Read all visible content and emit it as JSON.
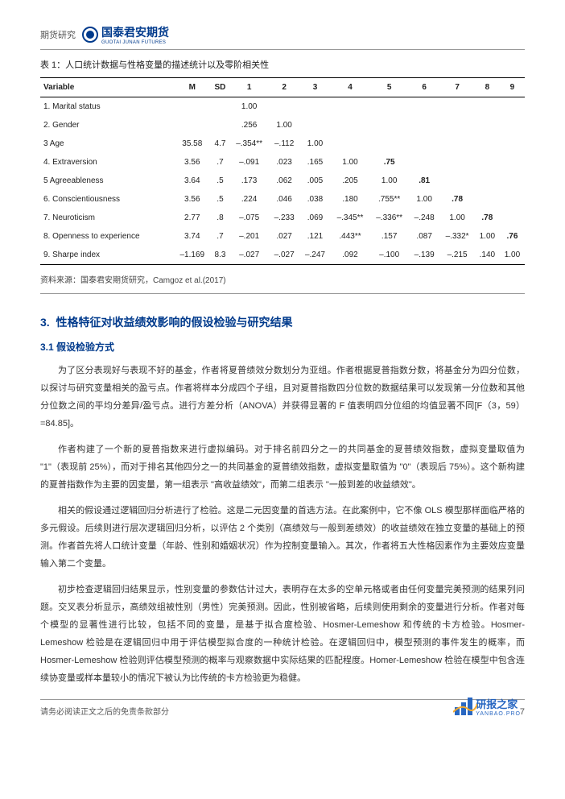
{
  "header": {
    "category": "期货研究",
    "logo_main": "国泰君安期货",
    "logo_sub": "GUOTAI JUNAN FUTURES"
  },
  "table": {
    "caption": "表 1：人口统计数据与性格变量的描述统计以及零阶相关性",
    "columns": [
      "Variable",
      "M",
      "SD",
      "1",
      "2",
      "3",
      "4",
      "5",
      "6",
      "7",
      "8",
      "9"
    ],
    "rows": [
      [
        "1. Marital status",
        "",
        "",
        "1.00",
        "",
        "",
        "",
        "",
        "",
        "",
        "",
        ""
      ],
      [
        "2. Gender",
        "",
        "",
        ".256",
        "1.00",
        "",
        "",
        "",
        "",
        "",
        "",
        ""
      ],
      [
        "3 Age",
        "35.58",
        "4.7",
        "–.354**",
        "–.112",
        "1.00",
        "",
        "",
        "",
        "",
        "",
        ""
      ],
      [
        "4. Extraversion",
        "3.56",
        ".7",
        "–.091",
        ".023",
        ".165",
        "1.00",
        ".75",
        "",
        "",
        "",
        ""
      ],
      [
        "5 Agreeableness",
        "3.64",
        ".5",
        ".173",
        ".062",
        ".005",
        ".205",
        "1.00",
        ".81",
        "",
        "",
        ""
      ],
      [
        "6. Conscientiousness",
        "3.56",
        ".5",
        ".224",
        ".046",
        ".038",
        ".180",
        ".755**",
        "1.00",
        ".78",
        "",
        ""
      ],
      [
        "7. Neuroticism",
        "2.77",
        ".8",
        "–.075",
        "–.233",
        ".069",
        "–.345**",
        "–.336**",
        "–.248",
        "1.00",
        ".78",
        ""
      ],
      [
        "8. Openness to experience",
        "3.74",
        ".7",
        "–.201",
        ".027",
        ".121",
        ".443**",
        ".157",
        ".087",
        "–.332*",
        "1.00",
        ".76"
      ],
      [
        "9. Sharpe index",
        "–1.169",
        "8.3",
        "–.027",
        "–.027",
        "–.247",
        ".092",
        "–.100",
        "–.139",
        "–.215",
        ".140",
        "1.00"
      ]
    ],
    "bold_cells": [
      [
        3,
        7
      ],
      [
        4,
        8
      ],
      [
        5,
        9
      ],
      [
        6,
        10
      ],
      [
        7,
        11
      ]
    ],
    "source": "资料来源：国泰君安期货研究，Camgoz et al.(2017)"
  },
  "section": {
    "num": "3.",
    "title": "性格特征对收益绩效影响的假设检验与研究结果",
    "sub_num": "3.1",
    "sub_title": "假设检验方式",
    "paragraphs": [
      "为了区分表现好与表现不好的基金，作者将夏普绩效分数划分为亚组。作者根据夏普指数分数，将基金分为四分位数，以探讨与研究变量相关的盈亏点。作者将样本分成四个子组，且对夏普指数四分位数的数据结果可以发现第一分位数和其他分位数之间的平均分差异/盈亏点。进行方差分析（ANOVA）并获得显著的 F 值表明四分位组的均值显著不同[F（3，59）=84.85]。",
      "作者构建了一个新的夏普指数来进行虚拟编码。对于排名前四分之一的共同基金的夏普绩效指数，虚拟变量取值为 \"1\"（表现前 25%），而对于排名其他四分之一的共同基金的夏普绩效指数，虚拟变量取值为 \"0\"（表现后 75%）。这个新构建的夏普指数作为主要的因变量，第一组表示 \"高收益绩效\"，而第二组表示 \"一般到差的收益绩效\"。",
      "相关的假设通过逻辑回归分析进行了检验。这是二元因变量的首选方法。在此案例中，它不像 OLS 模型那样面临严格的多元假设。后续则进行层次逻辑回归分析，以评估 2 个类别（高绩效与一般到差绩效）的收益绩效在独立变量的基础上的预测。作者首先将人口统计变量（年龄、性别和婚姻状况）作为控制变量输入。其次，作者将五大性格因素作为主要效应变量输入第二个变量。",
      "初步检查逻辑回归结果显示，性别变量的参数估计过大，表明存在太多的空单元格或者由任何变量完美预测的结果列问题。交叉表分析显示，高绩效组被性别（男性）完美预测。因此，性别被省略，后续则使用剩余的变量进行分析。作者对每个模型的显著性进行比较，包括不同的变量，是基于拟合度检验、Hosmer-Lemeshow 和传统的卡方检验。Hosmer-Lemeshow 检验是在逻辑回归中用于评估模型拟合度的一种统计检验。在逻辑回归中，模型预测的事件发生的概率，而 Hosmer-Lemeshow 检验则评估模型预测的概率与观察数据中实际结果的匹配程度。Homer-Lemeshow 检验在模型中包含连续协变量或样本量较小的情况下被认为比传统的卡方检验更为稳健。"
    ]
  },
  "footer": {
    "disclaimer": "请务必阅读正文之后的免责条款部分",
    "page": "7"
  },
  "watermark": {
    "name": "研报之家",
    "sub": "YANBAO.PRO"
  }
}
